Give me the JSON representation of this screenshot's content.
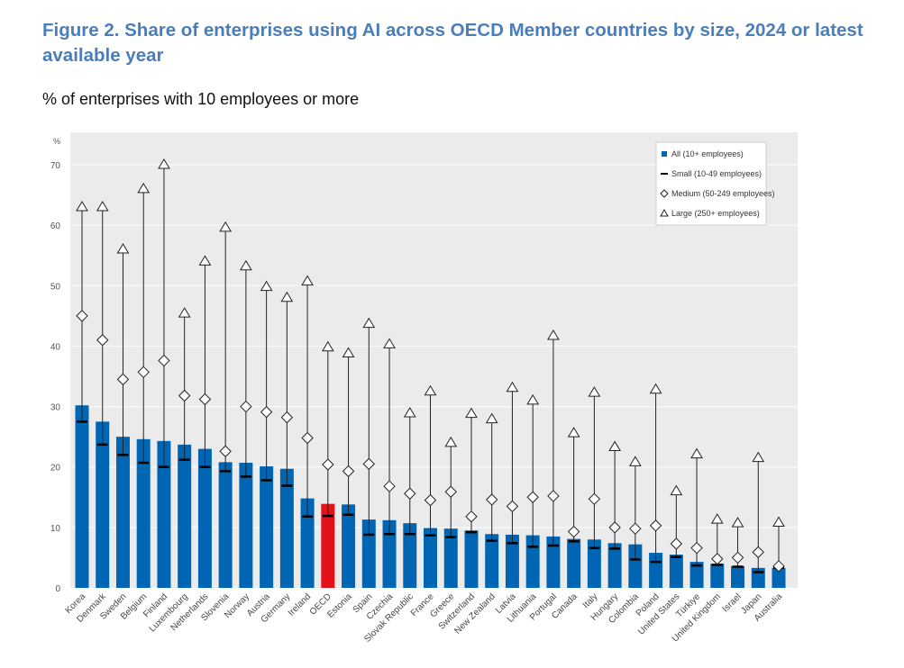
{
  "chart_data": {
    "type": "bar",
    "title": "Figure 2. Share of enterprises using AI across OECD Member countries by size, 2024 or latest available year",
    "subtitle": "% of enterprises with 10 employees or more",
    "ylabel": "%",
    "ylim": [
      0,
      70
    ],
    "yticks": [
      0,
      10,
      20,
      30,
      40,
      50,
      60,
      70
    ],
    "grid": true,
    "legend_position": "top-right",
    "colors": {
      "bar": "#0066b3",
      "highlight": "#e2121b",
      "background": "#ebebeb"
    },
    "highlight_category": "OECD",
    "categories": [
      "Korea",
      "Denmark",
      "Sweden",
      "Belgium",
      "Finland",
      "Luxembourg",
      "Netherlands",
      "Slovenia",
      "Norway",
      "Austria",
      "Germany",
      "Ireland",
      "OECD",
      "Estonia",
      "Spain",
      "Czechia",
      "Slovak Republic",
      "France",
      "Greece",
      "Switzerland",
      "New Zealand",
      "Latvia",
      "Lithuania",
      "Portugal",
      "Canada",
      "Italy",
      "Hungary",
      "Colombia",
      "Poland",
      "United States",
      "Türkiye",
      "United Kingdom",
      "Israel",
      "Japan",
      "Australia"
    ],
    "series": [
      {
        "name": "All (10+ employees)",
        "marker": "bar",
        "values": [
          30.2,
          27.5,
          25.0,
          24.6,
          24.3,
          23.7,
          23.0,
          20.8,
          20.7,
          20.1,
          19.7,
          14.8,
          13.9,
          13.8,
          11.3,
          11.2,
          10.7,
          9.9,
          9.8,
          9.5,
          8.9,
          8.8,
          8.7,
          8.5,
          8.1,
          8.0,
          7.4,
          7.2,
          5.8,
          5.5,
          4.3,
          4.0,
          3.6,
          3.3,
          3.3
        ]
      },
      {
        "name": "Small (10-49 employees)",
        "marker": "dash",
        "values": [
          27.5,
          23.7,
          22.0,
          20.7,
          20.0,
          21.2,
          20.0,
          19.3,
          18.4,
          17.8,
          16.9,
          11.8,
          11.9,
          12.1,
          8.8,
          8.9,
          8.9,
          8.7,
          8.4,
          9.2,
          7.8,
          7.4,
          6.8,
          7.0,
          7.7,
          6.6,
          6.5,
          4.7,
          4.3,
          5.1,
          3.7,
          3.8,
          3.5,
          2.6,
          3.3
        ]
      },
      {
        "name": "Medium (50-249 employees)",
        "marker": "diamond",
        "values": [
          45.0,
          41.0,
          34.5,
          35.7,
          37.6,
          31.8,
          31.2,
          22.6,
          30.0,
          29.1,
          28.2,
          24.8,
          20.4,
          19.3,
          20.5,
          16.8,
          15.6,
          14.5,
          15.9,
          11.8,
          14.6,
          13.5,
          15.0,
          15.2,
          9.3,
          14.7,
          10.0,
          9.8,
          10.3,
          7.3,
          6.6,
          4.8,
          5.0,
          5.9,
          3.6
        ]
      },
      {
        "name": "Large (250+ employees)",
        "marker": "triangle",
        "values": [
          63.0,
          63.0,
          56.0,
          66.0,
          70.0,
          45.4,
          54.0,
          59.6,
          53.2,
          49.8,
          48.0,
          50.7,
          39.8,
          38.8,
          43.7,
          40.3,
          28.9,
          32.5,
          24.0,
          28.8,
          27.9,
          33.1,
          31.0,
          41.7,
          25.6,
          32.3,
          23.3,
          20.8,
          32.8,
          16.0,
          22.1,
          11.3,
          10.7,
          21.5,
          10.8
        ]
      }
    ]
  }
}
